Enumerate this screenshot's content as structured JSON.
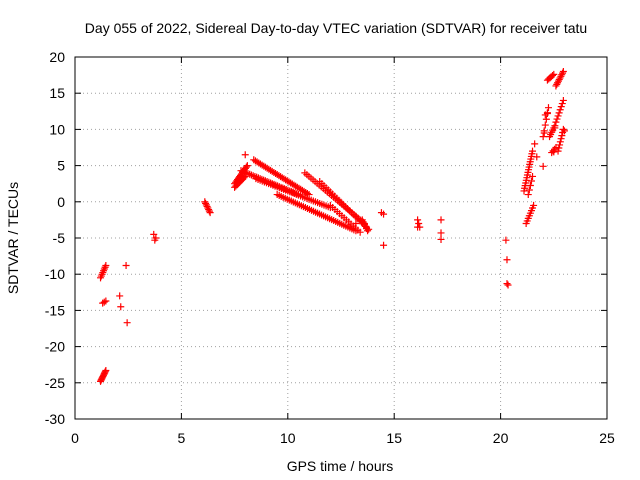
{
  "chart_data": {
    "type": "scatter",
    "title": "Day 055 of 2022, Sidereal Day-to-day VTEC variation (SDTVAR) for receiver tatu",
    "xlabel": "GPS time / hours",
    "ylabel": "SDTVAR / TECUs",
    "xlim": [
      0,
      25
    ],
    "ylim": [
      -30,
      20
    ],
    "xticks": [
      0,
      5,
      10,
      15,
      20,
      25
    ],
    "yticks": [
      -30,
      -25,
      -20,
      -15,
      -10,
      -5,
      0,
      5,
      10,
      15,
      20
    ],
    "grid": true,
    "marker": "+",
    "color": "#ff0000",
    "segments": [
      {
        "x0": 1.2,
        "x1": 1.45,
        "y0": -10.5,
        "y1": -8.8,
        "n": 8
      },
      {
        "x0": 1.2,
        "x1": 1.45,
        "y0": -24.8,
        "y1": -23.3,
        "n": 10
      },
      {
        "x0": 1.3,
        "x1": 1.45,
        "y0": -14.0,
        "y1": -13.7,
        "n": 3
      },
      {
        "x0": 6.1,
        "x1": 6.35,
        "y0": 0.0,
        "y1": -1.5,
        "n": 8
      },
      {
        "x0": 7.5,
        "x1": 8.1,
        "y0": 2.5,
        "y1": 5.0,
        "n": 14
      },
      {
        "x0": 7.5,
        "x1": 8.0,
        "y0": 2.0,
        "y1": 3.5,
        "n": 10
      },
      {
        "x0": 8.4,
        "x1": 11.0,
        "y0": 5.8,
        "y1": 1.0,
        "n": 34
      },
      {
        "x0": 7.8,
        "x1": 10.5,
        "y0": 4.3,
        "y1": 1.0,
        "n": 34
      },
      {
        "x0": 8.5,
        "x1": 12.0,
        "y0": 3.2,
        "y1": -0.8,
        "n": 36
      },
      {
        "x0": 9.5,
        "x1": 13.2,
        "y0": 1.0,
        "y1": -4.0,
        "n": 40
      },
      {
        "x0": 10.8,
        "x1": 13.6,
        "y0": 4.0,
        "y1": -3.0,
        "n": 30
      },
      {
        "x0": 11.5,
        "x1": 13.8,
        "y0": 2.8,
        "y1": -3.8,
        "n": 24
      },
      {
        "x0": 12.0,
        "x1": 13.4,
        "y0": -0.5,
        "y1": -4.2,
        "n": 14
      },
      {
        "x0": 13.5,
        "x1": 13.75,
        "y0": -2.5,
        "y1": -4.0,
        "n": 6
      },
      {
        "x0": 16.1,
        "x1": 16.2,
        "y0": -2.5,
        "y1": -3.5,
        "n": 3
      },
      {
        "x0": 21.1,
        "x1": 21.5,
        "y0": 1.5,
        "y1": 7.0,
        "n": 16
      },
      {
        "x0": 21.3,
        "x1": 21.5,
        "y0": 1.0,
        "y1": 3.5,
        "n": 5
      },
      {
        "x0": 21.2,
        "x1": 21.55,
        "y0": -3.0,
        "y1": -0.5,
        "n": 8
      },
      {
        "x0": 22.0,
        "x1": 22.25,
        "y0": 9.0,
        "y1": 13.0,
        "n": 6
      },
      {
        "x0": 22.2,
        "x1": 22.5,
        "y0": 16.8,
        "y1": 17.6,
        "n": 6
      },
      {
        "x0": 22.3,
        "x1": 22.55,
        "y0": 9.0,
        "y1": 10.5,
        "n": 6
      },
      {
        "x0": 22.4,
        "x1": 22.6,
        "y0": 6.8,
        "y1": 7.5,
        "n": 4
      },
      {
        "x0": 22.6,
        "x1": 22.95,
        "y0": 11.0,
        "y1": 14.0,
        "n": 8
      },
      {
        "x0": 22.6,
        "x1": 22.95,
        "y0": 16.0,
        "y1": 18.0,
        "n": 10
      },
      {
        "x0": 22.7,
        "x1": 22.95,
        "y0": 7.0,
        "y1": 10.0,
        "n": 8
      }
    ],
    "points": [
      [
        2.1,
        -13.0
      ],
      [
        2.15,
        -14.5
      ],
      [
        2.4,
        -8.8
      ],
      [
        2.45,
        -16.7
      ],
      [
        3.7,
        -4.5
      ],
      [
        3.75,
        -5.3
      ],
      [
        3.8,
        -5.0
      ],
      [
        8.0,
        6.5
      ],
      [
        13.2,
        -2.0
      ],
      [
        13.2,
        -3.0
      ],
      [
        14.4,
        -1.5
      ],
      [
        14.5,
        -1.7
      ],
      [
        14.5,
        -6.0
      ],
      [
        16.1,
        -3.5
      ],
      [
        17.2,
        -2.5
      ],
      [
        17.2,
        -4.3
      ],
      [
        17.2,
        -5.2
      ],
      [
        20.25,
        -5.3
      ],
      [
        20.3,
        -8.0
      ],
      [
        20.3,
        -11.3
      ],
      [
        20.35,
        -11.5
      ],
      [
        21.6,
        8.0
      ],
      [
        21.7,
        6.2
      ],
      [
        22.0,
        4.9
      ],
      [
        22.05,
        9.5
      ],
      [
        22.1,
        12.0
      ],
      [
        22.2,
        12.3
      ],
      [
        22.5,
        6.9
      ],
      [
        22.55,
        10.2
      ],
      [
        23.0,
        9.8
      ]
    ]
  }
}
